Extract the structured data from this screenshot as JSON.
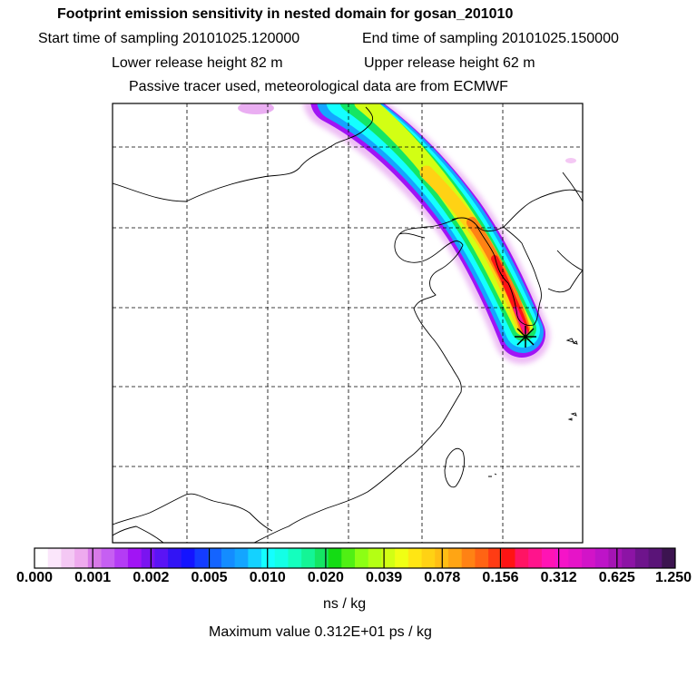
{
  "header": {
    "title": "Footprint emission sensitivity in nested domain for gosan_201010",
    "start_sampling": "Start time of sampling 20101025.120000",
    "end_sampling": "End time of sampling 20101025.150000",
    "lower_release": "Lower release height   82 m",
    "upper_release": "Upper release height   62 m",
    "tracer_info": "Passive tracer used, meteorological data are from ECMWF"
  },
  "colorbar": {
    "ticks": [
      "0.000",
      "0.001",
      "0.002",
      "0.005",
      "0.010",
      "0.020",
      "0.039",
      "0.078",
      "0.156",
      "0.312",
      "0.625",
      "1.250"
    ],
    "colors": [
      "#ffffff",
      "#fbe6fb",
      "#f4c8f4",
      "#eeaaee",
      "#d87ae8",
      "#c65ff2",
      "#b43cf5",
      "#a114f5",
      "#7a14f0",
      "#5a14f5",
      "#3214f5",
      "#1414ff",
      "#143cff",
      "#1464ff",
      "#148cff",
      "#14a5ff",
      "#14d2ff",
      "#14ffff",
      "#14ffe6",
      "#14ffbe",
      "#14f596",
      "#14e664",
      "#14dc14",
      "#50f014",
      "#8cff14",
      "#b4ff14",
      "#d2ff14",
      "#f0ff14",
      "#ffe614",
      "#ffd214",
      "#ffbe14",
      "#ffa514",
      "#ff8214",
      "#ff6414",
      "#ff3c14",
      "#ff1414",
      "#ff1464",
      "#ff148c",
      "#ff14b4",
      "#f514c8",
      "#e614c8",
      "#d214c8",
      "#be14c8",
      "#a514b4",
      "#8c14a5",
      "#6e148c",
      "#5a1478",
      "#3c1450"
    ],
    "units": "ns / kg",
    "maximum": "Maximum value  0.312E+01 ps / kg"
  },
  "map": {
    "receptor_marker": "receptor-star",
    "plume_colors": {
      "outer": "#e6a0f0",
      "violet": "#a014f5",
      "blue": "#14a5ff",
      "cyan": "#14ffff",
      "green": "#14e664",
      "lime": "#d2ff14",
      "yellow": "#ffd214",
      "orange": "#ff8214",
      "red": "#ff1414",
      "magenta": "#ff148c"
    }
  }
}
